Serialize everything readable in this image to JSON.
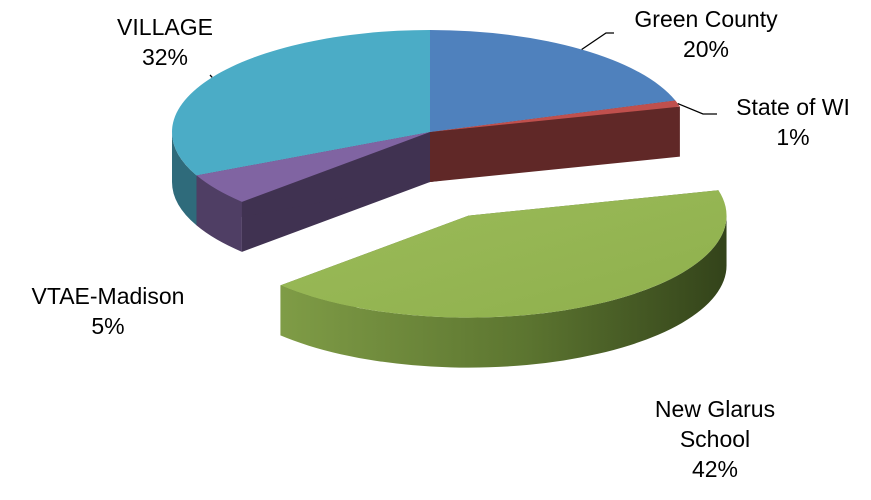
{
  "chart_data": {
    "type": "pie",
    "style": "3d-exploded",
    "title": "",
    "legend": "none",
    "slices": [
      {
        "label": "Green County",
        "value": 20,
        "display": "20%",
        "color": "#4F81BD",
        "exploded": false
      },
      {
        "label": "State of WI",
        "value": 1,
        "display": "1%",
        "color": "#C0504D",
        "exploded": false
      },
      {
        "label": "New Glarus School",
        "value": 42,
        "display": "42%",
        "color": "#9BBB59",
        "exploded": true
      },
      {
        "label": "VTAE-Madison",
        "value": 5,
        "display": "5%",
        "color": "#8064A2",
        "exploded": false
      },
      {
        "label": "VILLAGE",
        "value": 32,
        "display": "32%",
        "color": "#4BACC6",
        "exploded": false
      }
    ]
  },
  "labels": {
    "green_county": {
      "name": "Green County",
      "pct": "20%"
    },
    "state_wi": {
      "name": "State of WI",
      "pct": "1%"
    },
    "new_glarus": {
      "line1": "New Glarus",
      "line2": "School",
      "pct": "42%"
    },
    "vtae": {
      "name": "VTAE-Madison",
      "pct": "5%"
    },
    "village": {
      "name": "VILLAGE",
      "pct": "32%"
    }
  }
}
